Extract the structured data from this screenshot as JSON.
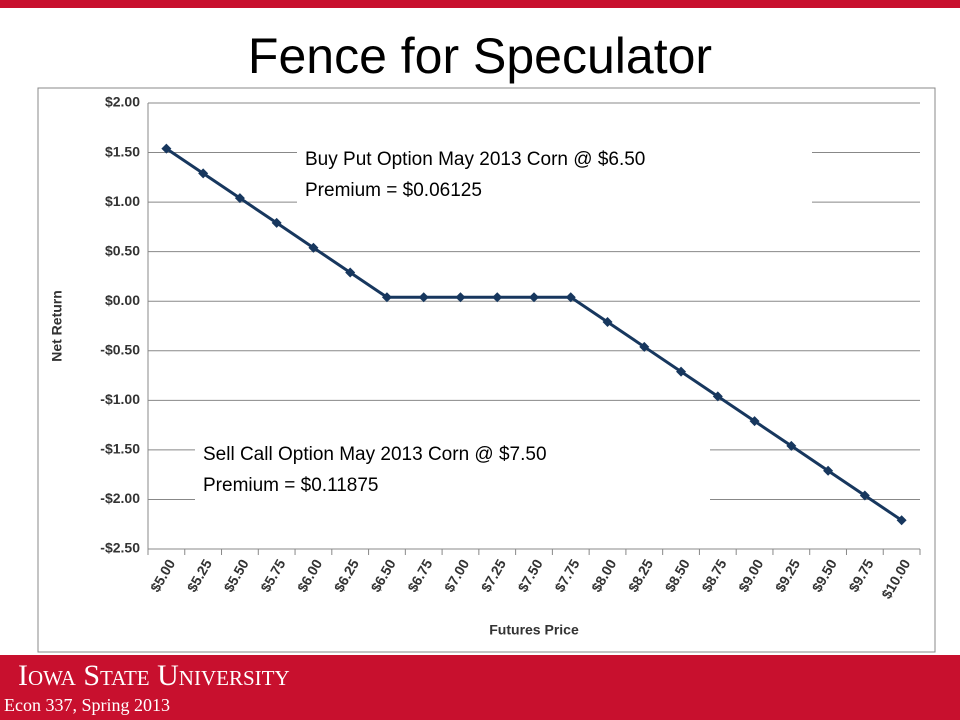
{
  "chart_data": {
    "type": "line",
    "title": "Fence for Speculator",
    "xlabel": "Futures Price",
    "ylabel": "Net Return",
    "categories": [
      "$5.00",
      "$5.25",
      "$5.50",
      "$5.75",
      "$6.00",
      "$6.25",
      "$6.50",
      "$6.75",
      "$7.00",
      "$7.25",
      "$7.50",
      "$7.75",
      "$8.00",
      "$8.25",
      "$8.50",
      "$8.75",
      "$9.00",
      "$9.25",
      "$9.50",
      "$9.75",
      "$10.00"
    ],
    "series": [
      {
        "color": "#17375e",
        "values": [
          1.54,
          1.29,
          1.04,
          0.79,
          0.54,
          0.29,
          0.04,
          0.04,
          0.04,
          0.04,
          0.04,
          0.04,
          -0.21,
          -0.46,
          -0.71,
          -0.96,
          -1.21,
          -1.46,
          -1.71,
          -1.96,
          -2.21
        ]
      }
    ],
    "ylim": [
      -2.5,
      2.0
    ],
    "yticks": [
      {
        "value": -2.5,
        "label": "-$2.50"
      },
      {
        "value": -2.0,
        "label": "-$2.00"
      },
      {
        "value": -1.5,
        "label": "-$1.50"
      },
      {
        "value": -1.0,
        "label": "-$1.00"
      },
      {
        "value": -0.5,
        "label": "-$0.50"
      },
      {
        "value": 0,
        "label": "$0.00"
      },
      {
        "value": 0.5,
        "label": "$0.50"
      },
      {
        "value": 1.0,
        "label": "$1.00"
      },
      {
        "value": 1.5,
        "label": "$1.50"
      },
      {
        "value": 2.0,
        "label": "$2.00"
      }
    ],
    "grid": true,
    "annotations": [
      {
        "lines": [
          "Buy Put Option May 2013 Corn @ $6.50",
          "Premium = $0.06125"
        ]
      },
      {
        "lines": [
          "Sell Call Option May 2013 Corn @ $7.50",
          "Premium = $0.11875"
        ]
      }
    ]
  },
  "footer": {
    "university": "Iowa State University",
    "course": "Econ 337, Spring 2013"
  }
}
